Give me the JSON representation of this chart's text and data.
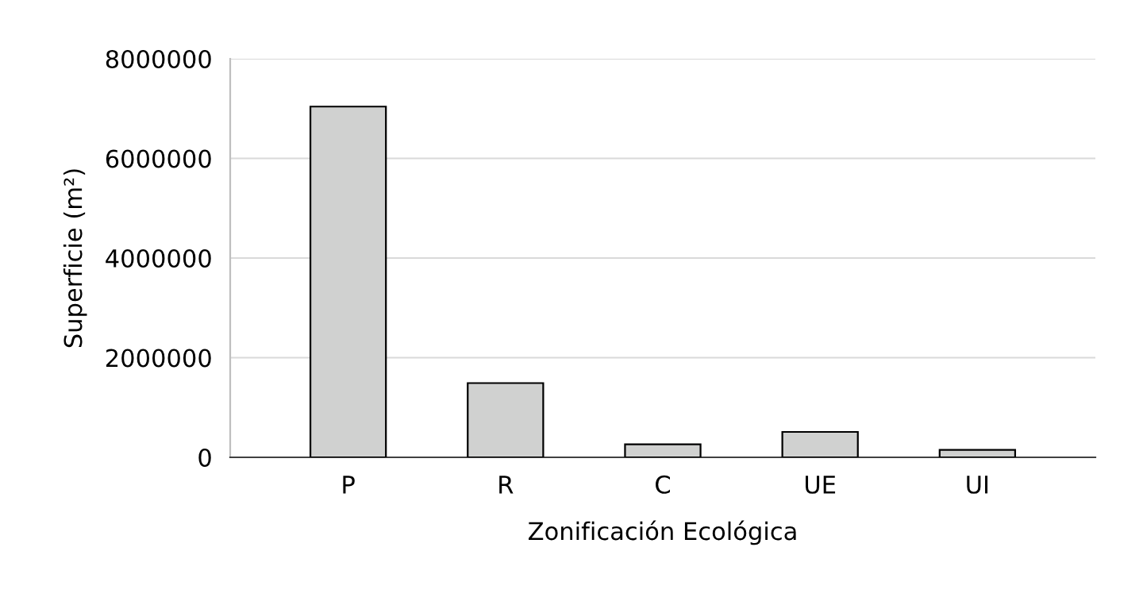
{
  "chart_data": {
    "type": "bar",
    "xlabel": "Zonificación Ecológica",
    "ylabel": "Superficie (m²)",
    "categories": [
      "P",
      "R",
      "C",
      "UE",
      "UI"
    ],
    "values": [
      7040000,
      1490000,
      260000,
      510000,
      150000
    ],
    "color": "#d0d1d0",
    "ylim": [
      0,
      8000000
    ],
    "yticks": [
      0,
      2000000,
      4000000,
      6000000,
      8000000
    ],
    "grid": "y"
  }
}
